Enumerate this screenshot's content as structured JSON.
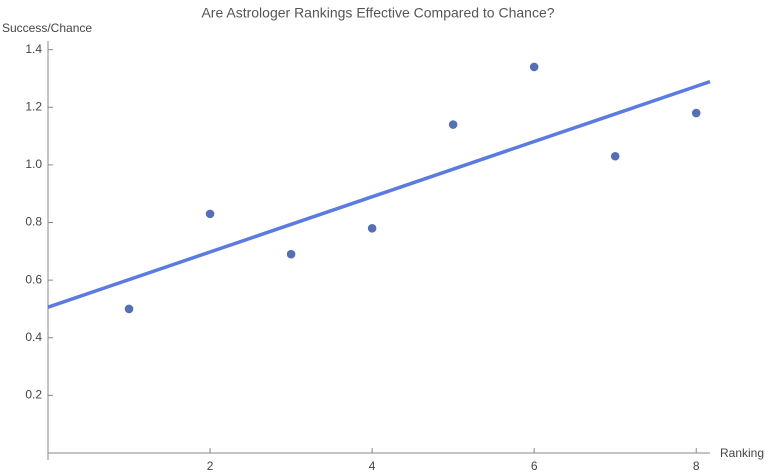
{
  "chart_data": {
    "type": "scatter",
    "title": "Are Astrologer Rankings Effective Compared to Chance?",
    "x_label": "Ranking",
    "y_label": "Success/Chance",
    "x": [
      1,
      2,
      3,
      4,
      5,
      6,
      7,
      8
    ],
    "series": [
      {
        "color": "#5570b2",
        "values": [
          0.5,
          0.83,
          0.69,
          0.78,
          1.14,
          1.34,
          1.03,
          1.18
        ]
      }
    ],
    "fit": {
      "x": [
        0,
        8.17
      ],
      "values": [
        0.506,
        1.289
      ],
      "color": "#5b7be0"
    },
    "xlim": [
      0,
      8.17
    ],
    "ylim": [
      0,
      1.43
    ],
    "xticks": [
      2,
      4,
      6,
      8
    ],
    "yticks": [
      0.2,
      0.4,
      0.6,
      0.8,
      {
        "value": 1,
        "label": "1.0"
      },
      1.2,
      1.4
    ]
  }
}
